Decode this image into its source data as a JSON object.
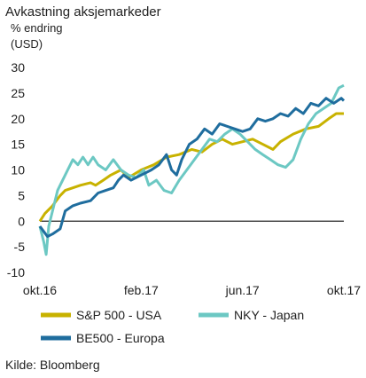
{
  "chart_data": {
    "type": "line",
    "title": "Avkastning aksjemarkeder",
    "ylabel": "% endring",
    "yunit": "(USD)",
    "ylim": [
      -10,
      30
    ],
    "yticks": [
      30,
      25,
      20,
      15,
      10,
      5,
      0,
      -5,
      -10
    ],
    "xlim": [
      0,
      12
    ],
    "xticks": [
      {
        "x": 0,
        "label": "okt.16"
      },
      {
        "x": 4,
        "label": "feb.17"
      },
      {
        "x": 8,
        "label": "jun.17"
      },
      {
        "x": 12,
        "label": "okt.17"
      }
    ],
    "grid": false,
    "legend_position": "bottom",
    "source": "Kilde: Bloomberg",
    "series": [
      {
        "name": "S&P 500 - USA",
        "color": "#c8b200",
        "points": [
          [
            0,
            0
          ],
          [
            0.2,
            1.5
          ],
          [
            0.5,
            3
          ],
          [
            0.8,
            5
          ],
          [
            1.0,
            6
          ],
          [
            1.3,
            6.5
          ],
          [
            1.6,
            7
          ],
          [
            2.0,
            7.5
          ],
          [
            2.2,
            7
          ],
          [
            2.5,
            8
          ],
          [
            2.8,
            9
          ],
          [
            3.2,
            10
          ],
          [
            3.5,
            8.5
          ],
          [
            4.0,
            10
          ],
          [
            4.5,
            11
          ],
          [
            5.0,
            12.5
          ],
          [
            5.5,
            13
          ],
          [
            6.0,
            14
          ],
          [
            6.4,
            13.5
          ],
          [
            6.8,
            15
          ],
          [
            7.2,
            16
          ],
          [
            7.6,
            15
          ],
          [
            8.0,
            15.5
          ],
          [
            8.4,
            16
          ],
          [
            8.8,
            15
          ],
          [
            9.2,
            14
          ],
          [
            9.5,
            15.5
          ],
          [
            10.0,
            17
          ],
          [
            10.5,
            18
          ],
          [
            11.0,
            18.5
          ],
          [
            11.4,
            20
          ],
          [
            11.7,
            21
          ],
          [
            12,
            21
          ]
        ]
      },
      {
        "name": "NKY - Japan",
        "color": "#6cc8c3",
        "points": [
          [
            0,
            -1
          ],
          [
            0.15,
            -4
          ],
          [
            0.25,
            -6.5
          ],
          [
            0.35,
            -1
          ],
          [
            0.5,
            2
          ],
          [
            0.7,
            6
          ],
          [
            0.9,
            8
          ],
          [
            1.1,
            10
          ],
          [
            1.3,
            12
          ],
          [
            1.5,
            11
          ],
          [
            1.7,
            12.5
          ],
          [
            1.9,
            11
          ],
          [
            2.1,
            12.5
          ],
          [
            2.3,
            11
          ],
          [
            2.6,
            10
          ],
          [
            2.9,
            12
          ],
          [
            3.2,
            10
          ],
          [
            3.5,
            9
          ],
          [
            3.8,
            8.5
          ],
          [
            4.1,
            10
          ],
          [
            4.3,
            7
          ],
          [
            4.6,
            8
          ],
          [
            4.9,
            6
          ],
          [
            5.2,
            5.5
          ],
          [
            5.5,
            8
          ],
          [
            5.8,
            10
          ],
          [
            6.1,
            12
          ],
          [
            6.4,
            14
          ],
          [
            6.7,
            16
          ],
          [
            7.0,
            15.5
          ],
          [
            7.3,
            17
          ],
          [
            7.6,
            18
          ],
          [
            7.9,
            17
          ],
          [
            8.2,
            15.5
          ],
          [
            8.5,
            14
          ],
          [
            8.8,
            13
          ],
          [
            9.1,
            12
          ],
          [
            9.4,
            11
          ],
          [
            9.7,
            10.5
          ],
          [
            10.0,
            12
          ],
          [
            10.3,
            16
          ],
          [
            10.6,
            19
          ],
          [
            10.9,
            21
          ],
          [
            11.2,
            22
          ],
          [
            11.5,
            23
          ],
          [
            11.8,
            26
          ],
          [
            12,
            26.5
          ]
        ]
      },
      {
        "name": "BE500 - Europa",
        "color": "#1f6d9e",
        "points": [
          [
            0,
            -1
          ],
          [
            0.15,
            -2
          ],
          [
            0.3,
            -3
          ],
          [
            0.5,
            -2.5
          ],
          [
            0.8,
            -1.5
          ],
          [
            1.0,
            2
          ],
          [
            1.3,
            3
          ],
          [
            1.6,
            3.5
          ],
          [
            2.0,
            4
          ],
          [
            2.3,
            5.5
          ],
          [
            2.6,
            6
          ],
          [
            2.9,
            6.5
          ],
          [
            3.1,
            8
          ],
          [
            3.3,
            9
          ],
          [
            3.6,
            8
          ],
          [
            4.0,
            9
          ],
          [
            4.4,
            10
          ],
          [
            4.7,
            11
          ],
          [
            5.0,
            13
          ],
          [
            5.2,
            10
          ],
          [
            5.4,
            9
          ],
          [
            5.6,
            12
          ],
          [
            5.9,
            15
          ],
          [
            6.2,
            16
          ],
          [
            6.5,
            18
          ],
          [
            6.8,
            17
          ],
          [
            7.1,
            19
          ],
          [
            7.4,
            18.5
          ],
          [
            7.7,
            18
          ],
          [
            8.0,
            17.5
          ],
          [
            8.3,
            18
          ],
          [
            8.6,
            20
          ],
          [
            8.9,
            19.5
          ],
          [
            9.2,
            20
          ],
          [
            9.5,
            21
          ],
          [
            9.8,
            20.5
          ],
          [
            10.1,
            22
          ],
          [
            10.4,
            21
          ],
          [
            10.7,
            23
          ],
          [
            11.0,
            22.5
          ],
          [
            11.3,
            24
          ],
          [
            11.6,
            23
          ],
          [
            11.9,
            24
          ],
          [
            12,
            23.5
          ]
        ]
      }
    ]
  }
}
